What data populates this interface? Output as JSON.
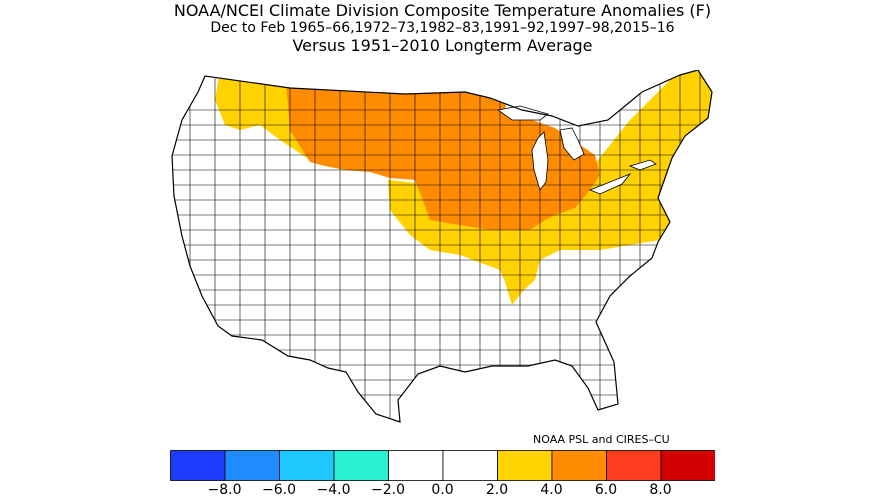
{
  "title": {
    "line1": "NOAA/NCEI Climate Division Composite Temperature Anomalies (F)",
    "line2": "Dec to Feb  1965–66,1972–73,1982–83,1991–92,1997–98,2015–16",
    "line3": "Versus 1951–2010 Longterm Average"
  },
  "credit": "NOAA PSL and CIRES–CU",
  "legend": {
    "bins": [
      {
        "color": "#1e3cff"
      },
      {
        "color": "#1e8cff"
      },
      {
        "color": "#1ec8ff"
      },
      {
        "color": "#28f0d2"
      },
      {
        "color": "#ffffff"
      },
      {
        "color": "#ffffff"
      },
      {
        "color": "#ffd200"
      },
      {
        "color": "#ff8c00"
      },
      {
        "color": "#ff3c1e"
      },
      {
        "color": "#d20000"
      }
    ],
    "tick_labels": [
      "−8.0",
      "−6.0",
      "−4.0",
      "−2.0",
      "0.0",
      "2.0",
      "4.0",
      "6.0",
      "8.0"
    ]
  },
  "regions": [
    {
      "name": "northern-plains-upper-midwest",
      "anomaly_class": "4.0 to 6.0",
      "color": "#ff8c00"
    },
    {
      "name": "great-lakes",
      "anomaly_class": "4.0 to 6.0",
      "color": "#ff8c00"
    },
    {
      "name": "northeast-and-ohio-valley",
      "anomaly_class": "2.0 to 4.0",
      "color": "#ffd200"
    },
    {
      "name": "central-plains-midwest-south",
      "anomaly_class": "2.0 to 4.0",
      "color": "#ffd200"
    },
    {
      "name": "northwest-montana",
      "anomaly_class": "2.0 to 4.0",
      "color": "#ffd200"
    },
    {
      "name": "west-and-south",
      "anomaly_class": "-2.0 to 2.0",
      "color": "#ffffff"
    }
  ]
}
